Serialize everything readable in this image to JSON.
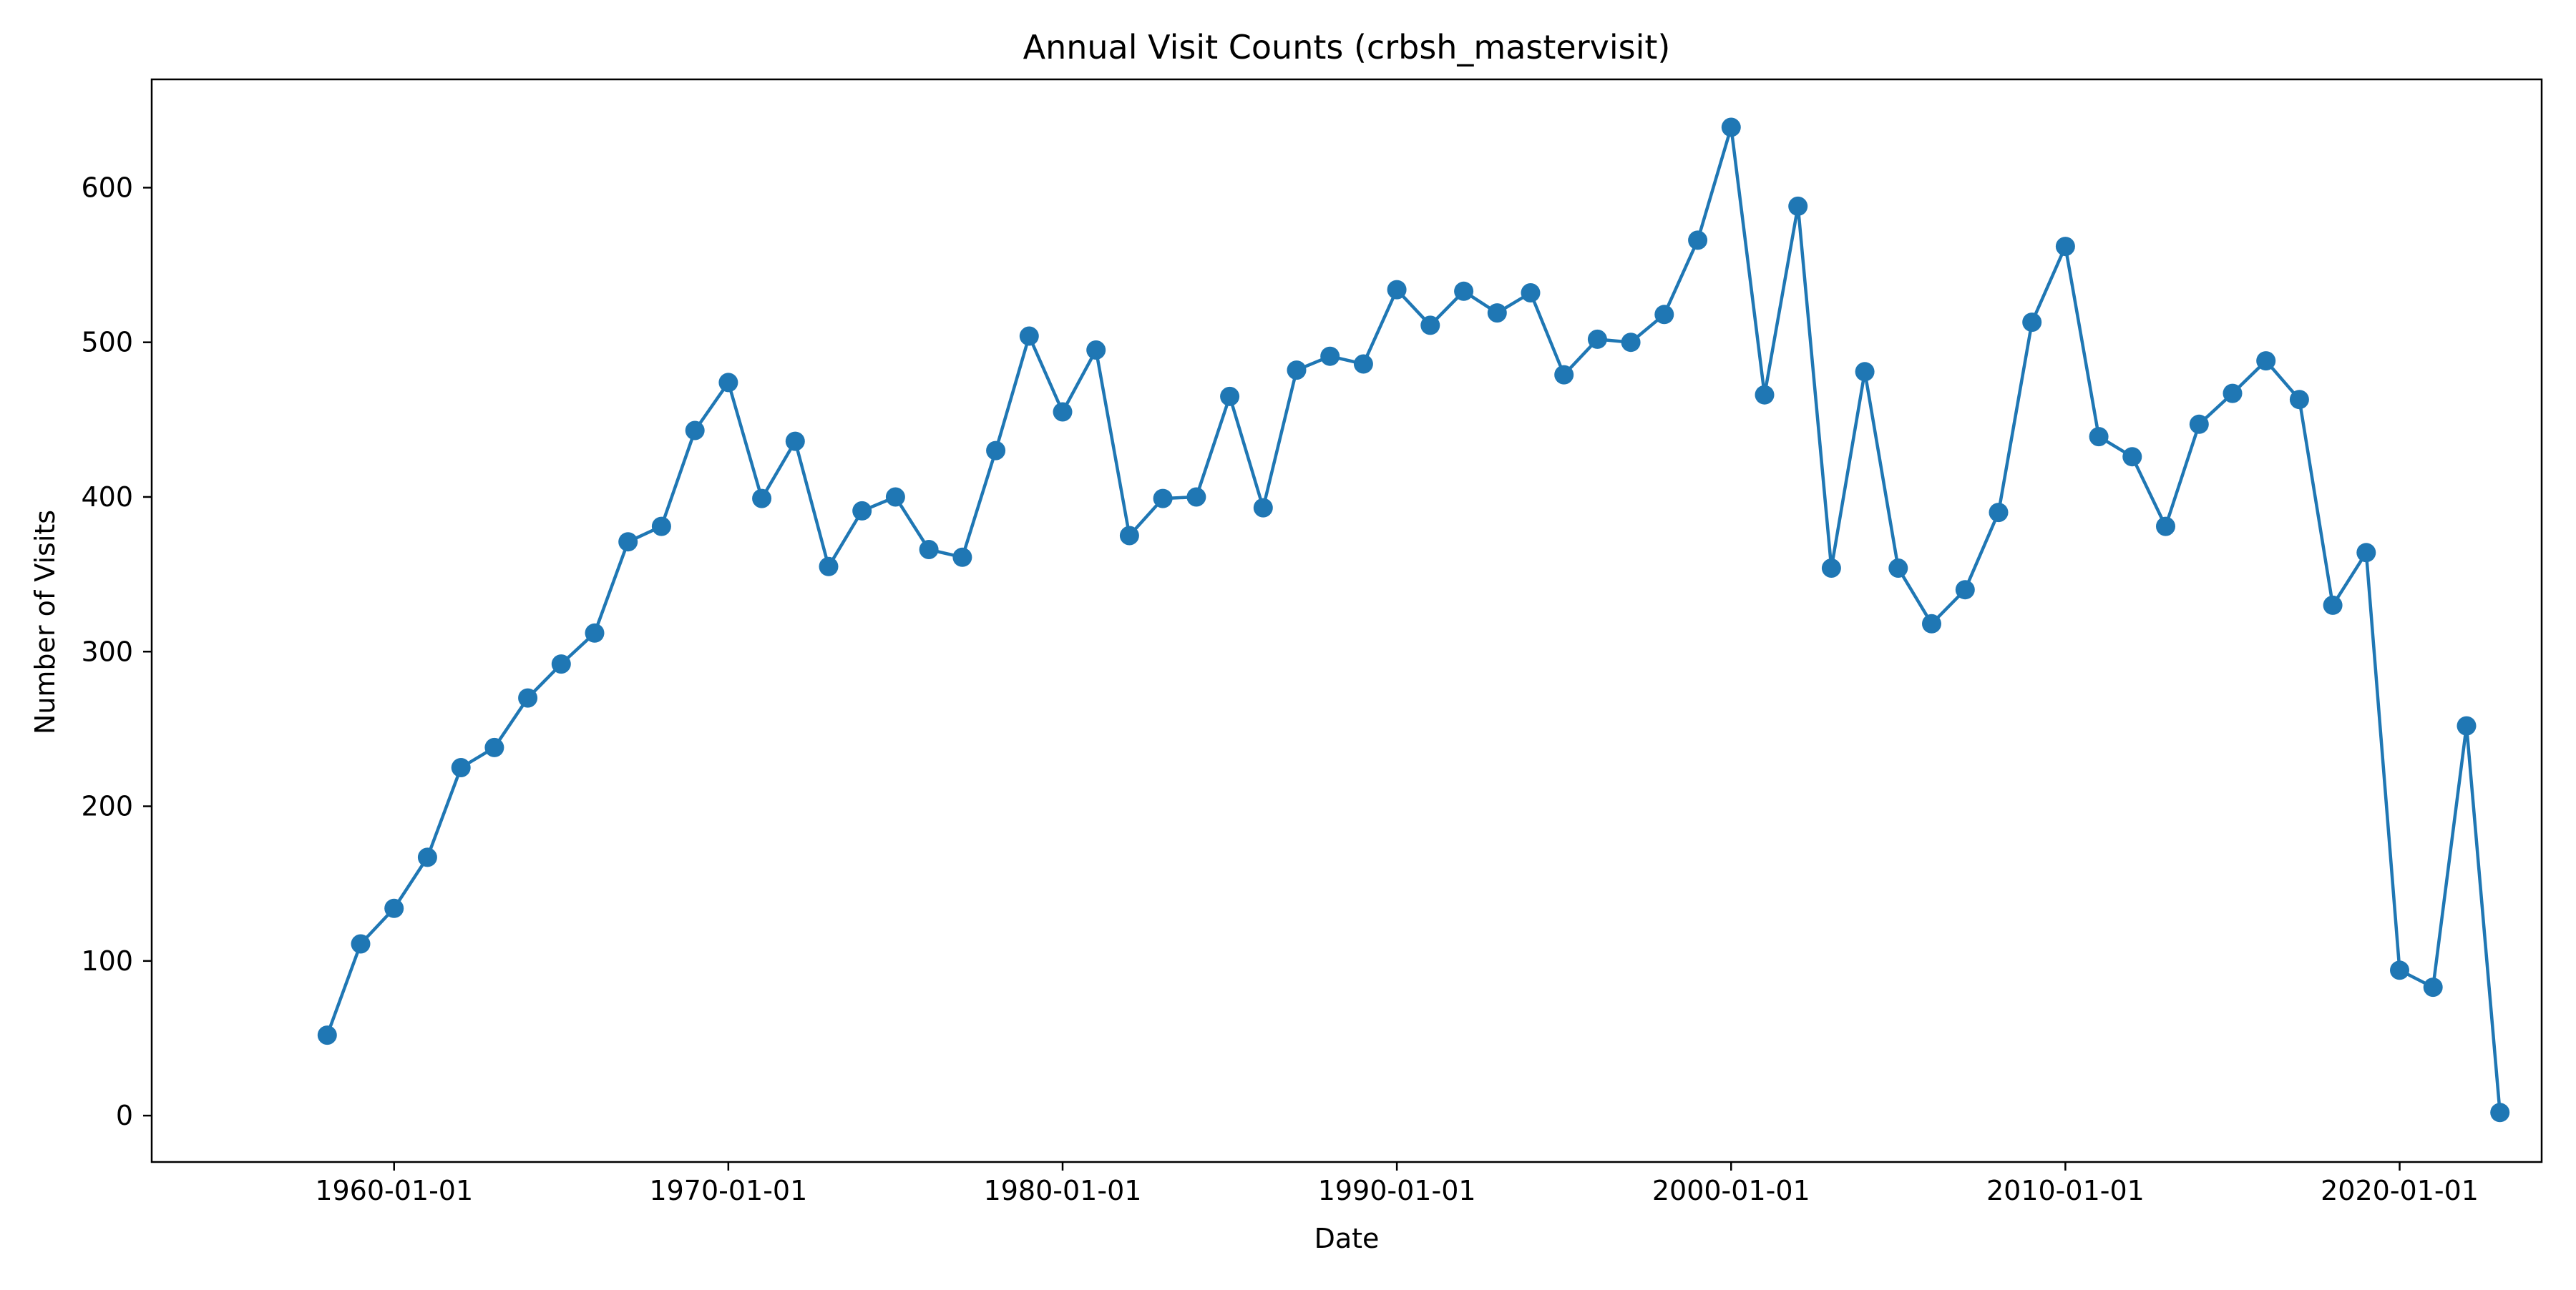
{
  "chart_data": {
    "type": "line",
    "title": "Annual Visit Counts (crbsh_mastervisit)",
    "xlabel": "Date",
    "ylabel": "Number of Visits",
    "x_tick_labels": [
      "1960-01-01",
      "1970-01-01",
      "1980-01-01",
      "1990-01-01",
      "2000-01-01",
      "2010-01-01",
      "2020-01-01"
    ],
    "x_tick_years": [
      1960,
      1970,
      1980,
      1990,
      2000,
      2010,
      2020
    ],
    "y_ticks": [
      0,
      100,
      200,
      300,
      400,
      500,
      600
    ],
    "xlim": [
      "1952-10-01",
      "2024-04-01"
    ],
    "ylim": [
      -30,
      670
    ],
    "grid": false,
    "series": [
      {
        "color": "#1f77b4",
        "marker": "circle",
        "x": [
          "1958-01-01",
          "1959-01-01",
          "1960-01-01",
          "1961-01-01",
          "1962-01-01",
          "1963-01-01",
          "1964-01-01",
          "1965-01-01",
          "1966-01-01",
          "1967-01-01",
          "1968-01-01",
          "1969-01-01",
          "1970-01-01",
          "1971-01-01",
          "1972-01-01",
          "1973-01-01",
          "1974-01-01",
          "1975-01-01",
          "1976-01-01",
          "1977-01-01",
          "1978-01-01",
          "1979-01-01",
          "1980-01-01",
          "1981-01-01",
          "1982-01-01",
          "1983-01-01",
          "1984-01-01",
          "1985-01-01",
          "1986-01-01",
          "1987-01-01",
          "1988-01-01",
          "1989-01-01",
          "1990-01-01",
          "1991-01-01",
          "1992-01-01",
          "1993-01-01",
          "1994-01-01",
          "1995-01-01",
          "1996-01-01",
          "1997-01-01",
          "1998-01-01",
          "1999-01-01",
          "2000-01-01",
          "2001-01-01",
          "2002-01-01",
          "2003-01-01",
          "2004-01-01",
          "2005-01-01",
          "2006-01-01",
          "2007-01-01",
          "2008-01-01",
          "2009-01-01",
          "2010-01-01",
          "2011-01-01",
          "2012-01-01",
          "2013-01-01",
          "2014-01-01",
          "2015-01-01",
          "2016-01-01",
          "2017-01-01",
          "2018-01-01",
          "2019-01-01",
          "2020-01-01",
          "2021-01-01",
          "2022-01-01",
          "2023-01-01"
        ],
        "y": [
          52,
          111,
          134,
          167,
          225,
          238,
          270,
          292,
          312,
          371,
          381,
          443,
          474,
          399,
          436,
          355,
          391,
          400,
          366,
          361,
          430,
          504,
          455,
          495,
          375,
          399,
          400,
          465,
          393,
          482,
          491,
          486,
          534,
          511,
          533,
          519,
          532,
          479,
          502,
          500,
          518,
          566,
          639,
          466,
          588,
          354,
          481,
          354,
          318,
          340,
          390,
          513,
          562,
          439,
          426,
          381,
          447,
          467,
          488,
          463,
          330,
          364,
          94,
          83,
          252,
          2
        ]
      }
    ]
  }
}
